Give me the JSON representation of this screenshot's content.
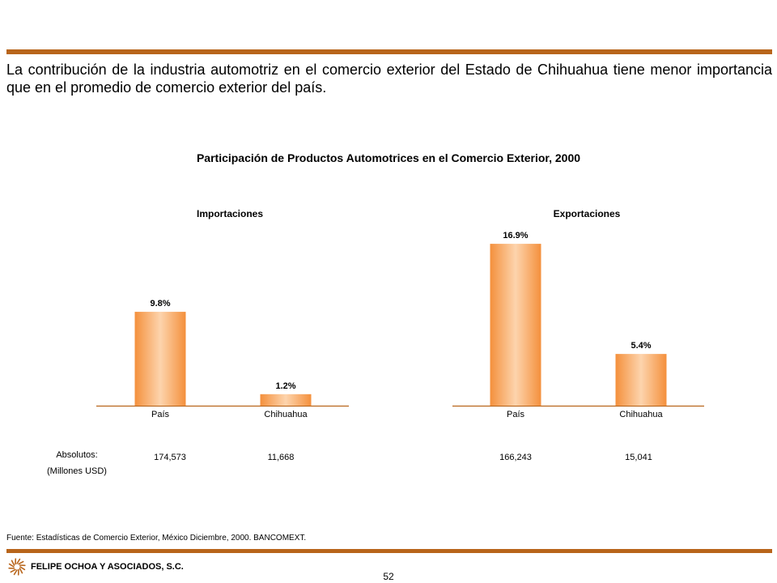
{
  "intro_text": "La contribución de la industria automotriz en el comercio exterior del Estado de Chihuahua tiene menor importancia que en el promedio de comercio exterior del país.",
  "colors": {
    "rule": "#b8651b",
    "bar_light": "#fdd4ad",
    "bar_dark": "#f4903c"
  },
  "chart_data": {
    "title": "Participación de Productos Automotrices en el Comercio Exterior, 2000",
    "panels": [
      {
        "type": "bar",
        "title": "Importaciones",
        "categories": [
          "País",
          "Chihuahua"
        ],
        "values": [
          9.8,
          1.2
        ],
        "value_labels": [
          "9.8%",
          "1.2%"
        ],
        "absolutes": [
          "174,573",
          "11,668"
        ],
        "ylim": [
          0,
          17.5
        ]
      },
      {
        "type": "bar",
        "title": "Exportaciones",
        "categories": [
          "País",
          "Chihuahua"
        ],
        "values": [
          16.9,
          5.4
        ],
        "value_labels": [
          "16.9%",
          "5.4%"
        ],
        "absolutes": [
          "166,243",
          "15,041"
        ],
        "ylim": [
          0,
          17.5
        ]
      }
    ]
  },
  "absolutes_label": {
    "line1": "Absolutos:",
    "line2": "(Millones USD)"
  },
  "source": "Fuente: Estadísticas de Comercio Exterior, México Diciembre, 2000. BANCOMEXT.",
  "company": "FELIPE OCHOA Y ASOCIADOS, S.C.",
  "page_number": "52",
  "logo_icon": "sunburst-logo-icon"
}
